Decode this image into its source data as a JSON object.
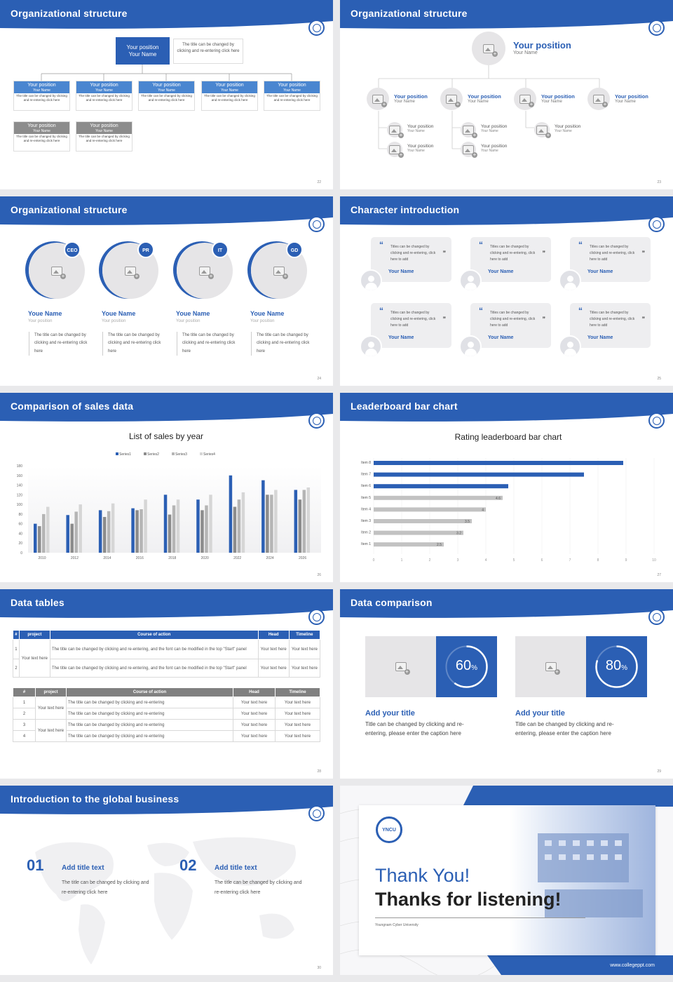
{
  "slides": {
    "s22": {
      "title": "Organizational structure",
      "page": "22",
      "top": {
        "position": "Your position",
        "name": "Your Name",
        "caption": "The title can be changed by clicking and re-entering click here"
      },
      "row": [
        {
          "position": "Your position",
          "name": "Your Name",
          "text": "The title can be changed by clicking and re-entering click here"
        },
        {
          "position": "Your position",
          "name": "Your Name",
          "text": "The title can be changed by clicking and re-entering click here"
        },
        {
          "position": "Your position",
          "name": "Your Name",
          "text": "The title can be changed by clicking and re-entering click here"
        },
        {
          "position": "Your position",
          "name": "Your Name",
          "text": "The title can be changed by clicking and re-entering click here"
        },
        {
          "position": "Your position",
          "name": "Your Name",
          "text": "The title can be changed by clicking and re-entering click here"
        }
      ],
      "row2": [
        {
          "position": "Your position",
          "name": "Your Name",
          "text": "The title can be changed by clicking and re-entering click here"
        },
        {
          "position": "Your position",
          "name": "Your Name",
          "text": "The title can be changed by clicking and re-entering click here"
        }
      ]
    },
    "s23": {
      "title": "Organizational structure",
      "page": "23",
      "top": {
        "position": "Your position",
        "name": "Your Name"
      },
      "level2": [
        {
          "position": "Your position",
          "name": "Your Name"
        },
        {
          "position": "Your position",
          "name": "Your Name"
        },
        {
          "position": "Your position",
          "name": "Your Name"
        },
        {
          "position": "Your position",
          "name": "Your Name"
        }
      ],
      "level3": [
        {
          "position": "Your position",
          "name": "Your Name"
        },
        {
          "position": "Your position",
          "name": "Your Name"
        },
        {
          "position": "Your position",
          "name": "Your Name"
        },
        {
          "position": "Your position",
          "name": "Your Name"
        },
        {
          "position": "Your position",
          "name": "Your Name"
        }
      ]
    },
    "s24": {
      "title": "Organizational structure",
      "page": "24",
      "people": [
        {
          "badge": "CEO",
          "name": "Youe Name",
          "position": "Your position",
          "text": "The title can be changed by clicking and re-entering click here"
        },
        {
          "badge": "PR",
          "name": "Youe Name",
          "position": "Your position",
          "text": "The title can be changed by clicking and re-entering click here"
        },
        {
          "badge": "IT",
          "name": "Youe Name",
          "position": "Your position",
          "text": "The title can be changed by clicking and re-entering click here"
        },
        {
          "badge": "GD",
          "name": "Youe Name",
          "position": "Your position",
          "text": "The title can be changed by clicking and re-entering click here"
        }
      ]
    },
    "s25": {
      "title": "Character introduction",
      "page": "25",
      "cards": [
        {
          "text": "Titles can be changed by clicking and re-entering, click here to add",
          "name": "Your Name"
        },
        {
          "text": "Titles can be changed by clicking and re-entering, click here to add",
          "name": "Your Name"
        },
        {
          "text": "Titles can be changed by clicking and re-entering, click here to add",
          "name": "Your Name"
        },
        {
          "text": "Titles can be changed by clicking and re-entering, click here to add",
          "name": "Your Name"
        },
        {
          "text": "Titles can be changed by clicking and re-entering, click here to add",
          "name": "Your Name"
        },
        {
          "text": "Titles can be changed by clicking and re-entering, click here to add",
          "name": "Your Name"
        }
      ]
    },
    "s26": {
      "title": "Comparison of sales data",
      "page": "26"
    },
    "s27": {
      "title": "Leaderboard bar chart",
      "page": "27"
    },
    "s28": {
      "title": "Data tables",
      "page": "28",
      "t1": {
        "headers": [
          "#",
          "project",
          "Course of action",
          "Head",
          "Timeline"
        ],
        "project": "Your text here",
        "rows": [
          {
            "n": "1",
            "action": "The title can be changed by clicking and re-entering, and the font can be modified in the top \"Start\" panel",
            "head": "Your text here",
            "time": "Your text here"
          },
          {
            "n": "2",
            "action": "The title can be changed by clicking and re-entering, and the font can be modified in the top \"Start\" panel",
            "head": "Your text here",
            "time": "Your text here"
          }
        ]
      },
      "t2": {
        "headers": [
          "#",
          "project",
          "Course of action",
          "Head",
          "Timeline"
        ],
        "projects": [
          "Your text here",
          "Your text here"
        ],
        "rows": [
          {
            "n": "1",
            "action": "The title can be changed by clicking and re-entering",
            "head": "Your text here",
            "time": "Your text here"
          },
          {
            "n": "2",
            "action": "The title can be changed by clicking and re-entering",
            "head": "Your text here",
            "time": "Your text here"
          },
          {
            "n": "3",
            "action": "The title can be changed by clicking and re-entering",
            "head": "Your text here",
            "time": "Your text here"
          },
          {
            "n": "4",
            "action": "The title can be changed by clicking and re-entering",
            "head": "Your text here",
            "time": "Your text here"
          }
        ]
      }
    },
    "s29": {
      "title": "Data comparison",
      "page": "29",
      "items": [
        {
          "percent": 60,
          "value": "60",
          "unit": "%",
          "title": "Add your title",
          "text": "Title can be changed by clicking and re-entering, please enter the caption here"
        },
        {
          "percent": 80,
          "value": "80",
          "unit": "%",
          "title": "Add your title",
          "text": "Title can be changed by clicking and re-entering, please enter the caption here"
        }
      ]
    },
    "s30": {
      "title": "Introduction to the global business",
      "page": "30",
      "items": [
        {
          "num": "01",
          "title": "Add title text",
          "text": "The title can be changed by clicking and re-entering click here"
        },
        {
          "num": "02",
          "title": "Add title text",
          "text": "The title can be changed by clicking and re-entering click here"
        }
      ]
    },
    "s31": {
      "logo": "YNCU",
      "thanks": "Thank You!",
      "listening": "Thanks for listening!",
      "school": "Youngnam Cyber University",
      "site": "www.collegeppt.com"
    }
  },
  "chart_data": [
    {
      "type": "bar",
      "title": "List of sales by year",
      "categories": [
        "2010",
        "2012",
        "2014",
        "2016",
        "2018",
        "2020",
        "2022",
        "2024",
        "2026"
      ],
      "series": [
        {
          "name": "Series1",
          "values": [
            60,
            78,
            88,
            92,
            120,
            110,
            160,
            150,
            130
          ]
        },
        {
          "name": "Series2",
          "values": [
            55,
            60,
            74,
            88,
            79,
            88,
            95,
            120,
            110
          ]
        },
        {
          "name": "Series3",
          "values": [
            80,
            85,
            86,
            90,
            98,
            98,
            110,
            120,
            130
          ]
        },
        {
          "name": "Series4",
          "values": [
            95,
            100,
            102,
            110,
            110,
            120,
            125,
            130,
            135
          ]
        }
      ],
      "ylim": [
        0,
        180
      ],
      "yticks": [
        "0",
        "20",
        "40",
        "60",
        "80",
        "100",
        "120",
        "140",
        "160",
        "180"
      ],
      "colors": [
        "#2b5fb4",
        "#8c8c8c",
        "#b5b5b5",
        "#d6d6d6"
      ],
      "legend": "top"
    },
    {
      "type": "bar",
      "orientation": "horizontal",
      "title": "Rating leaderboard bar chart",
      "categories": [
        "Item 1",
        "Item 2",
        "Item 3",
        "Item 4",
        "Item 5",
        "Item 6",
        "Item 7",
        "Item 8"
      ],
      "values": [
        2.5,
        3.2,
        3.5,
        4,
        4.6,
        4.8,
        7.5,
        8.9
      ],
      "labels": [
        "2.5",
        "3.2",
        "3.5",
        "4",
        "4.6",
        "",
        "",
        ""
      ],
      "xlim": [
        0,
        10
      ],
      "xticks": [
        "0",
        "1",
        "2",
        "3",
        "4",
        "5",
        "6",
        "7",
        "8",
        "9",
        "10"
      ],
      "colors": [
        "#c2c2c2",
        "#c2c2c2",
        "#c2c2c2",
        "#c2c2c2",
        "#c2c2c2",
        "#2b5fb4",
        "#2b5fb4",
        "#2b5fb4"
      ]
    }
  ]
}
